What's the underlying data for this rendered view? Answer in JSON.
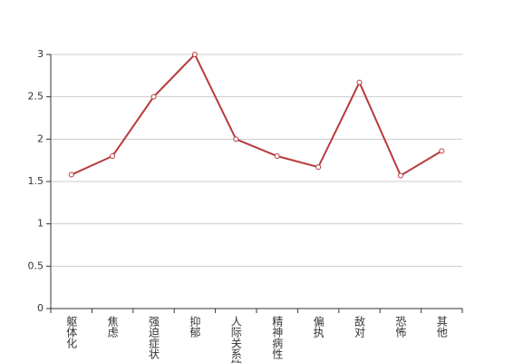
{
  "chart_data": {
    "type": "line",
    "categories": [
      "躯体化",
      "焦虑",
      "强迫症状",
      "抑郁",
      "人际关系敏感",
      "精神病性",
      "偏执",
      "敌对",
      "恐怖",
      "其他"
    ],
    "values": [
      1.58,
      1.8,
      2.5,
      3.0,
      2.0,
      1.8,
      1.67,
      2.67,
      1.57,
      1.86
    ],
    "color": "#b83b3b",
    "ylim": [
      0,
      3
    ],
    "yticks": [
      0,
      0.5,
      1,
      1.5,
      2,
      2.5,
      3
    ],
    "grid": true
  }
}
